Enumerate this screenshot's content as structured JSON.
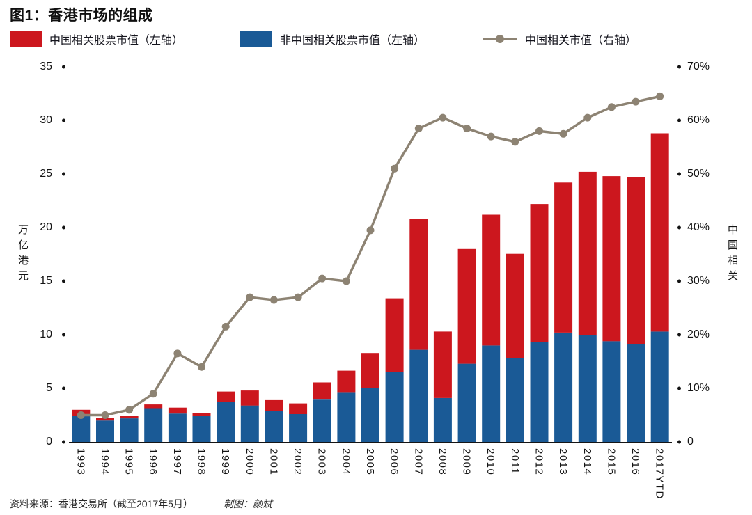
{
  "title": "图1：香港市场的组成",
  "legend": {
    "items": [
      {
        "label": "中国相关股票市值（左轴）"
      },
      {
        "label": "非中国相关股票市值（左轴）"
      },
      {
        "label": "中国相关市值（右轴）"
      }
    ]
  },
  "colors": {
    "china_bar": "#cc171e",
    "nonchina_bar": "#1a5a96",
    "line": "#8d8373",
    "axis_text": "#141414"
  },
  "left_axis": {
    "title": "万亿港元",
    "ticks": [
      "35",
      "30",
      "25",
      "20",
      "15",
      "10",
      "5",
      "0"
    ]
  },
  "right_axis": {
    "title": "中国相关",
    "ticks": [
      "70%",
      "60%",
      "50%",
      "40%",
      "30%",
      "20%",
      "10%",
      "0"
    ]
  },
  "footer": {
    "source": "资料来源：香港交易所（截至2017年5月）",
    "credit": "制图：颜斌"
  },
  "chart_data": {
    "type": "bar",
    "subtype": "stacked-bar-with-line",
    "title": "图1：香港市场的组成",
    "categories": [
      "1993",
      "1994",
      "1995",
      "1996",
      "1997",
      "1998",
      "1999",
      "2000",
      "2001",
      "2002",
      "2003",
      "2004",
      "2005",
      "2006",
      "2007",
      "2008",
      "2009",
      "2010",
      "2011",
      "2012",
      "2013",
      "2014",
      "2015",
      "2016",
      "2017YTD"
    ],
    "series": [
      {
        "name": "中国相关股票市值（左轴）",
        "id": "china_bar",
        "type": "bar",
        "axis": "left",
        "unit": "万亿港元",
        "stack": "top",
        "values": [
          0.6,
          0.25,
          0.2,
          0.35,
          0.55,
          0.3,
          1.0,
          1.4,
          1.0,
          1.0,
          1.6,
          2.0,
          3.3,
          6.9,
          12.2,
          6.2,
          10.7,
          12.2,
          9.7,
          12.9,
          14.0,
          15.2,
          15.4,
          15.6,
          18.5
        ]
      },
      {
        "name": "非中国相关股票市值（左轴）",
        "id": "nonchina_bar",
        "type": "bar",
        "axis": "left",
        "unit": "万亿港元",
        "stack": "bottom",
        "values": [
          2.4,
          2.0,
          2.2,
          3.15,
          2.65,
          2.4,
          3.7,
          3.4,
          2.9,
          2.6,
          3.95,
          4.65,
          5.0,
          6.5,
          8.6,
          4.1,
          7.3,
          9.0,
          7.85,
          9.3,
          10.2,
          10.0,
          9.4,
          9.1,
          10.3
        ]
      },
      {
        "name": "中国相关市值（右轴）",
        "id": "china_pct_line",
        "type": "line",
        "axis": "right",
        "unit": "%",
        "values": [
          5,
          5,
          6,
          9,
          16.5,
          14,
          21.5,
          27,
          26.5,
          27,
          30.5,
          30,
          39.5,
          51,
          58.5,
          60.5,
          58.5,
          57,
          56,
          58,
          57.5,
          60.5,
          62.5,
          63.5,
          64.5
        ]
      }
    ],
    "left_ylim": [
      0,
      35
    ],
    "right_ylim": [
      0,
      70
    ],
    "left_axis_label": "万亿港元",
    "right_axis_label": "中国相关",
    "legend_position": "top",
    "grid": false
  }
}
